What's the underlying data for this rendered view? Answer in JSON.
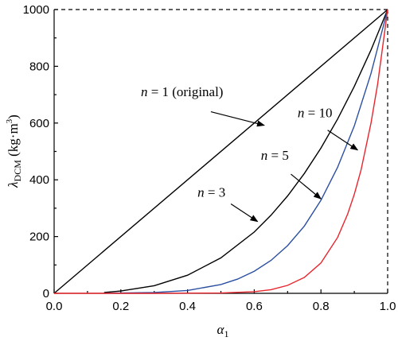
{
  "chart_data": {
    "type": "line",
    "xlabel": "α",
    "xlabel_sub": "1",
    "ylabel": "λ",
    "ylabel_sub": "DCM",
    "ylabel_units": " (kg·m",
    "ylabel_units_sup": "3",
    "ylabel_units_close": ")",
    "xlim": [
      0.0,
      1.0
    ],
    "ylim": [
      0,
      1000
    ],
    "x_ticks": [
      0.0,
      0.2,
      0.4,
      0.6,
      0.8,
      1.0
    ],
    "x_tick_labels": [
      "0.0",
      "0.2",
      "0.4",
      "0.6",
      "0.8",
      "1.0"
    ],
    "y_ticks": [
      0,
      200,
      400,
      600,
      800,
      1000
    ],
    "y_tick_labels": [
      "0",
      "200",
      "400",
      "600",
      "800",
      "1000"
    ],
    "grid": false,
    "series": [
      {
        "key": "n1",
        "color": "#000000",
        "x": [
          0.0,
          1.0
        ],
        "y": [
          0,
          1000
        ]
      },
      {
        "key": "n3",
        "color": "#000000",
        "x": [
          0.15,
          0.2,
          0.3,
          0.4,
          0.5,
          0.6,
          0.65,
          0.7,
          0.75,
          0.8,
          0.85,
          0.9,
          0.95,
          1.0
        ],
        "y": [
          3,
          8,
          27,
          64,
          125,
          216,
          275,
          343,
          422,
          512,
          614,
          729,
          857,
          1000
        ]
      },
      {
        "key": "n5",
        "color": "#2b4fa0",
        "x": [
          0.15,
          0.2,
          0.3,
          0.4,
          0.5,
          0.55,
          0.6,
          0.65,
          0.7,
          0.75,
          0.8,
          0.85,
          0.9,
          0.95,
          1.0
        ],
        "y": [
          0,
          1,
          3,
          10,
          31,
          50,
          78,
          116,
          168,
          237,
          328,
          444,
          590,
          774,
          1000
        ]
      },
      {
        "key": "n10",
        "color": "#e8262d",
        "x": [
          0.0,
          0.3,
          0.5,
          0.6,
          0.65,
          0.7,
          0.75,
          0.8,
          0.85,
          0.88,
          0.9,
          0.92,
          0.95,
          0.97,
          1.0
        ],
        "y": [
          0,
          0,
          1,
          6,
          13,
          28,
          56,
          107,
          197,
          279,
          349,
          434,
          599,
          737,
          1000
        ]
      }
    ],
    "annotations": [
      {
        "key": "a1",
        "italic": "n",
        "text": " = 1 (original)",
        "tx": 0.26,
        "ty": 695,
        "ax0": 0.47,
        "ay0": 640,
        "ax1": 0.63,
        "ay1": 592
      },
      {
        "key": "a10",
        "italic": "n",
        "text": " = 10",
        "tx": 0.73,
        "ty": 620,
        "ax0": 0.82,
        "ay0": 575,
        "ax1": 0.91,
        "ay1": 505
      },
      {
        "key": "a5",
        "italic": "n",
        "text": " = 5",
        "tx": 0.62,
        "ty": 470,
        "ax0": 0.71,
        "ay0": 420,
        "ax1": 0.8,
        "ay1": 333
      },
      {
        "key": "a3",
        "italic": "n",
        "text": " = 3",
        "tx": 0.43,
        "ty": 340,
        "ax0": 0.53,
        "ay0": 315,
        "ax1": 0.61,
        "ay1": 253
      }
    ]
  }
}
